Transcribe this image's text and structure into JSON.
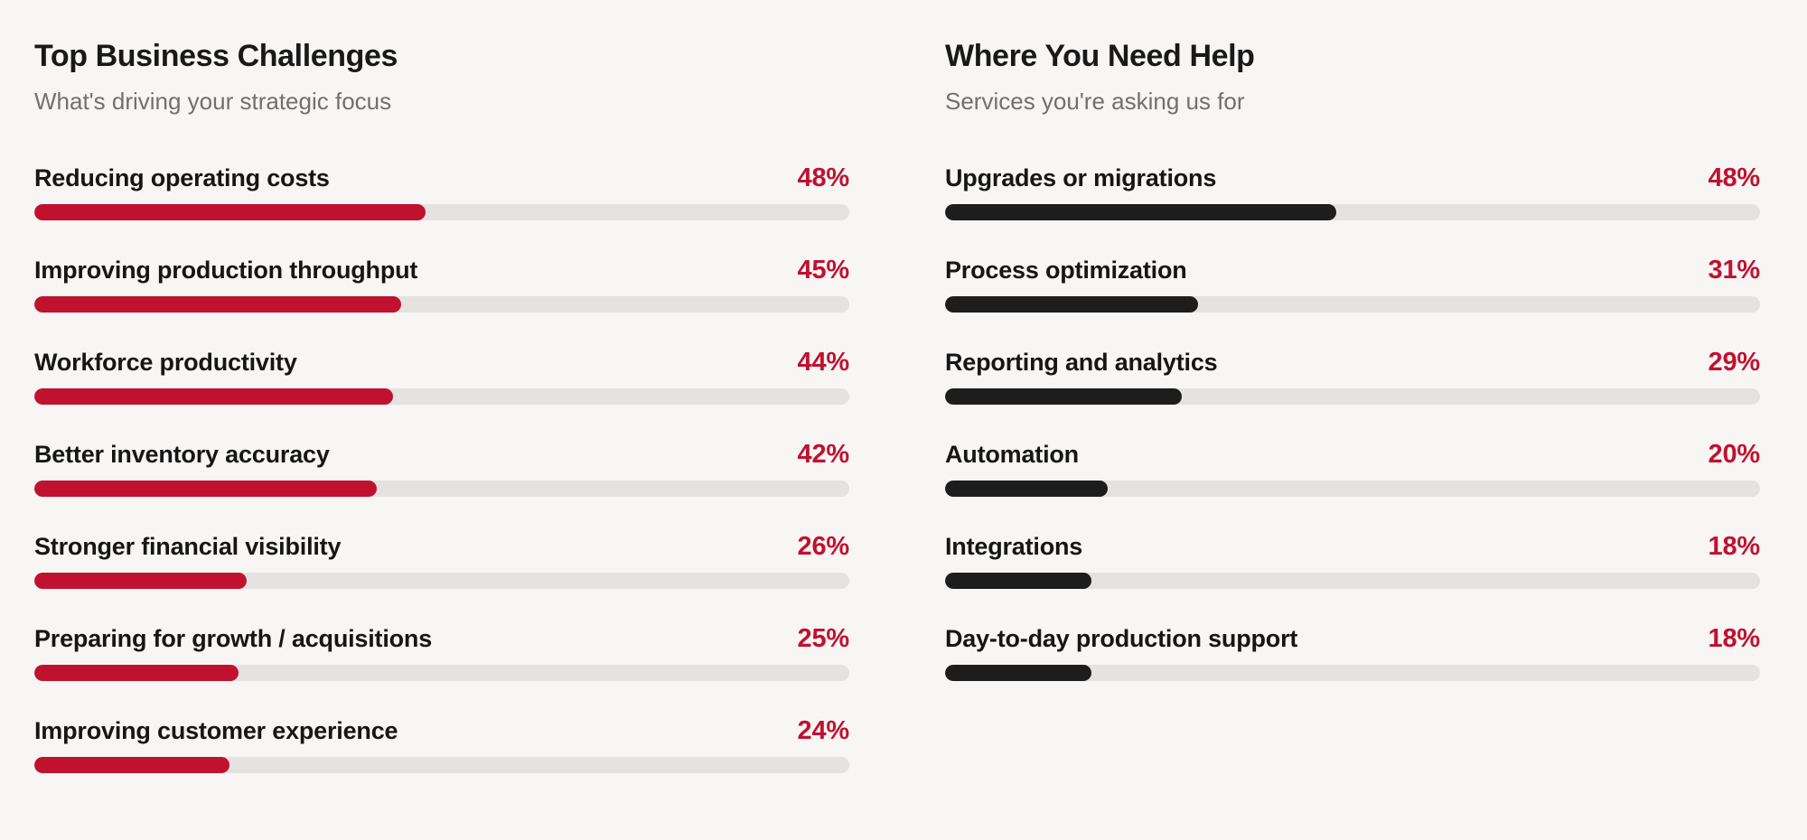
{
  "page": {
    "background": "#f7f6f5"
  },
  "colors": {
    "accent_red": "#c0122f",
    "bar_dark": "#1d1d1d",
    "track_gray": "#e4e3e1",
    "text_dark": "#161616",
    "text_muted": "#70706e"
  },
  "chart_data": [
    {
      "type": "bar",
      "orientation": "horizontal",
      "title": "Top Business Challenges",
      "subtitle": "What's driving your strategic focus",
      "value_suffix": "%",
      "xlim": [
        0,
        100
      ],
      "grid": false,
      "legend": false,
      "bar_color": "#c0122f",
      "track_color": "#e4e3e1",
      "value_label_color": "#c0122f",
      "categories": [
        "Reducing operating costs",
        "Improving production throughput",
        "Workforce productivity",
        "Better inventory accuracy",
        "Stronger financial visibility",
        "Preparing for growth / acquisitions",
        "Improving customer experience"
      ],
      "values": [
        48,
        45,
        44,
        42,
        26,
        25,
        24
      ],
      "value_labels": [
        "48%",
        "45%",
        "44%",
        "42%",
        "26%",
        "25%",
        "24%"
      ]
    },
    {
      "type": "bar",
      "orientation": "horizontal",
      "title": "Where You Need Help",
      "subtitle": "Services you're asking us for",
      "value_suffix": "%",
      "xlim": [
        0,
        100
      ],
      "grid": false,
      "legend": false,
      "bar_color": "#1d1d1d",
      "track_color": "#e4e3e1",
      "value_label_color": "#c0122f",
      "categories": [
        "Upgrades or migrations",
        "Process optimization",
        "Reporting and analytics",
        "Automation",
        "Integrations",
        "Day-to-day production support"
      ],
      "values": [
        48,
        31,
        29,
        20,
        18,
        18
      ],
      "value_labels": [
        "48%",
        "31%",
        "29%",
        "20%",
        "18%",
        "18%"
      ]
    }
  ]
}
